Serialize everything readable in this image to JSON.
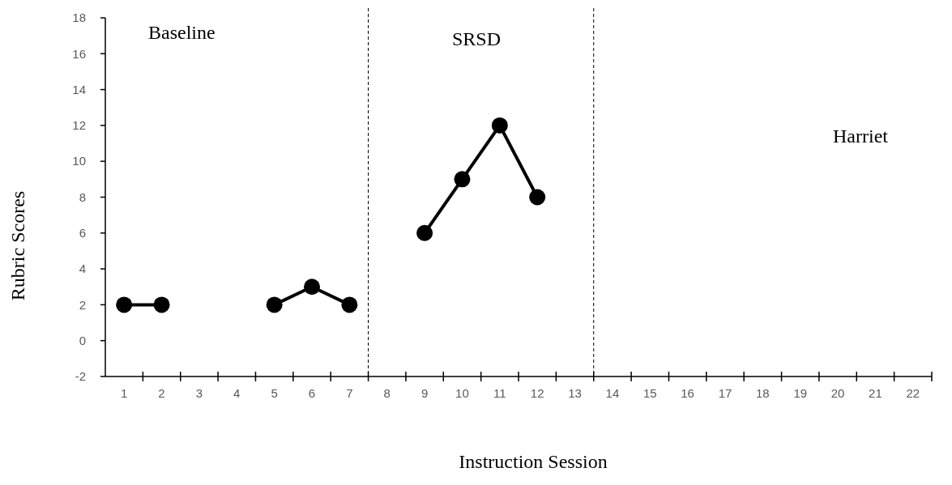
{
  "chart_data": {
    "type": "line",
    "xlabel": "Instruction Session",
    "ylabel": "Rubric Scores",
    "series": [
      {
        "color": "#000000",
        "x": [
          1,
          2
        ],
        "values": [
          2,
          2
        ]
      },
      {
        "color": "#000000",
        "x": [
          5,
          6,
          7
        ],
        "values": [
          2,
          3,
          2
        ]
      },
      {
        "color": "#000000",
        "x": [
          9,
          10,
          11,
          12
        ],
        "values": [
          6,
          9,
          12,
          8
        ]
      }
    ],
    "xlim": [
      0.5,
      22.5
    ],
    "xticks": [
      1,
      2,
      3,
      4,
      5,
      6,
      7,
      8,
      9,
      10,
      11,
      12,
      13,
      14,
      15,
      16,
      17,
      18,
      19,
      20,
      21,
      22
    ],
    "ylim": [
      -2,
      18
    ],
    "yticks": [
      -2,
      0,
      2,
      4,
      6,
      8,
      10,
      12,
      14,
      16,
      18
    ],
    "ref_lines": [
      {
        "axis": "x",
        "value": 7.5,
        "line_style": "dashed",
        "color": "#000000"
      },
      {
        "axis": "x",
        "value": 13.5,
        "line_style": "dashed",
        "color": "#000000"
      }
    ],
    "annotations": [
      "Baseline",
      "SRSD",
      "Harriet"
    ],
    "marker": "circle",
    "line_style": "solid",
    "grid": false
  }
}
